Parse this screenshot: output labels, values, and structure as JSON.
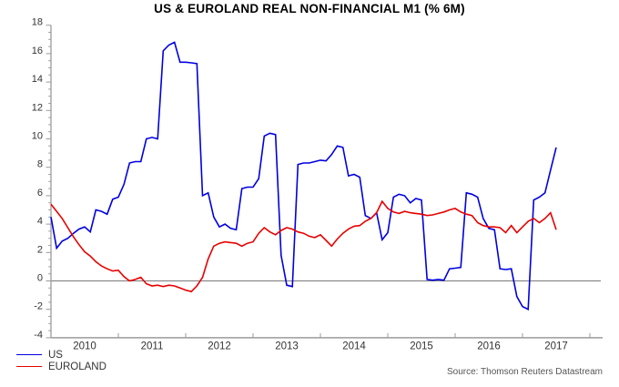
{
  "title": "US & EUROLAND REAL NON-FINANCIAL M1 (% 6M)",
  "source": "Source: Thomson Reuters Datastream",
  "legend": {
    "items": [
      {
        "label": "US",
        "color": "#0000e0"
      },
      {
        "label": "EUROLAND",
        "color": "#e80000"
      }
    ]
  },
  "chart_data": {
    "type": "line",
    "title": "US & EUROLAND REAL NON-FINANCIAL M1 (% 6M)",
    "xlabel": "",
    "ylabel": "",
    "x_unit": "month",
    "x_start": "2010-01",
    "x_end": "2017-07",
    "x_tick_labels": [
      "2010",
      "2011",
      "2012",
      "2013",
      "2014",
      "2015",
      "2016",
      "2017"
    ],
    "y_ticks": [
      18,
      16,
      14,
      12,
      10,
      8,
      6,
      4,
      2,
      0,
      -2,
      -4
    ],
    "ylim": [
      -4,
      18
    ],
    "y_minor_tick_step": 0.5,
    "zero_line": true,
    "grid": false,
    "legend_position": "bottom-left",
    "series": [
      {
        "name": "US",
        "color": "#0000e0",
        "values": [
          4.5,
          2.3,
          2.8,
          3.0,
          3.35,
          3.65,
          3.8,
          3.45,
          5.0,
          4.9,
          4.7,
          5.75,
          5.9,
          6.8,
          8.3,
          8.4,
          8.4,
          10.0,
          10.1,
          10.0,
          16.2,
          16.6,
          16.8,
          15.4,
          15.4,
          15.35,
          15.3,
          6.0,
          6.2,
          4.5,
          3.8,
          4.0,
          3.7,
          3.6,
          6.5,
          6.6,
          6.6,
          7.2,
          10.2,
          10.4,
          10.3,
          1.8,
          -0.3,
          -0.4,
          8.2,
          8.3,
          8.3,
          8.4,
          8.5,
          8.45,
          8.9,
          9.5,
          9.4,
          7.4,
          7.5,
          7.3,
          4.6,
          4.4,
          4.8,
          2.9,
          3.4,
          5.9,
          6.1,
          6.0,
          5.5,
          5.8,
          5.7,
          0.1,
          0.05,
          0.1,
          0.05,
          0.85,
          0.9,
          0.95,
          6.2,
          6.1,
          5.9,
          4.4,
          3.7,
          3.6,
          0.85,
          0.8,
          0.85,
          -1.1,
          -1.8,
          -2.0,
          5.7,
          5.9,
          6.2,
          7.8,
          9.4
        ]
      },
      {
        "name": "EUROLAND",
        "color": "#e80000",
        "values": [
          5.4,
          4.9,
          4.4,
          3.75,
          3.1,
          2.55,
          2.05,
          1.75,
          1.35,
          1.05,
          0.85,
          0.7,
          0.75,
          0.3,
          0.0,
          0.1,
          0.25,
          -0.2,
          -0.35,
          -0.3,
          -0.4,
          -0.3,
          -0.35,
          -0.5,
          -0.65,
          -0.75,
          -0.35,
          0.25,
          1.55,
          2.45,
          2.65,
          2.75,
          2.7,
          2.65,
          2.45,
          2.65,
          2.75,
          3.35,
          3.75,
          3.45,
          3.25,
          3.55,
          3.75,
          3.65,
          3.45,
          3.35,
          3.15,
          3.05,
          3.25,
          2.85,
          2.45,
          2.95,
          3.35,
          3.65,
          3.85,
          3.9,
          4.2,
          4.4,
          4.8,
          5.6,
          5.1,
          4.85,
          4.75,
          4.9,
          4.8,
          4.75,
          4.7,
          4.6,
          4.65,
          4.75,
          4.85,
          5.0,
          5.1,
          4.85,
          4.7,
          4.6,
          4.1,
          3.9,
          3.8,
          3.8,
          3.75,
          3.4,
          3.9,
          3.4,
          3.8,
          4.2,
          4.4,
          4.1,
          4.4,
          4.8,
          3.6
        ]
      }
    ]
  }
}
